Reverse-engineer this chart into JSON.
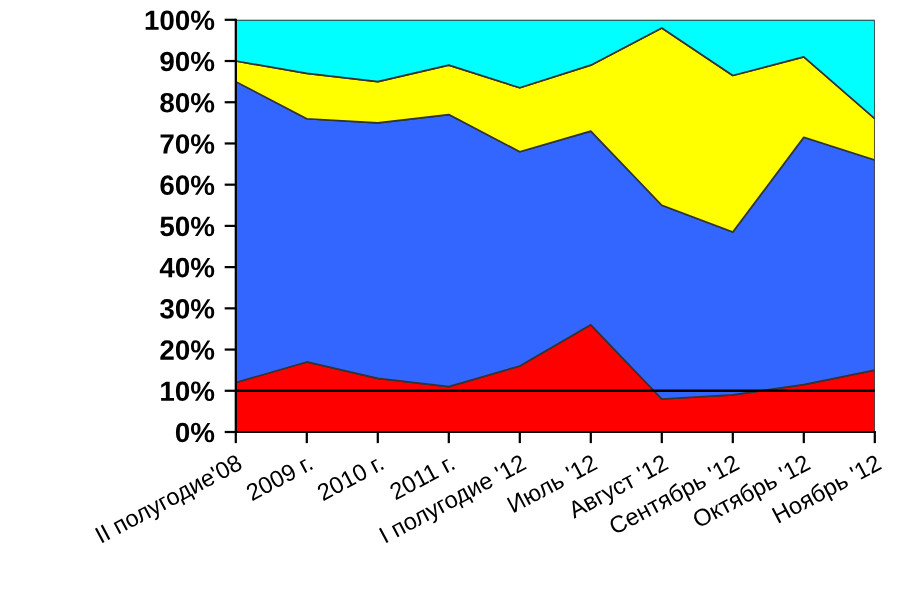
{
  "chart_data": {
    "type": "area",
    "stacked": true,
    "categories": [
      "II полугодие'08",
      "2009 г.",
      "2010 г.",
      "2011 г.",
      "I полугодие '12",
      "Июль '12",
      "Август '12",
      "Сентябрь '12",
      "Октябрь '12",
      "Ноябрь '12"
    ],
    "series": [
      {
        "color": "#ff0000",
        "values": [
          12,
          17,
          13,
          11,
          16,
          26,
          8,
          9,
          11.5,
          15
        ]
      },
      {
        "color": "#3366ff",
        "values": [
          73,
          59,
          62,
          66,
          52,
          47,
          47,
          39.5,
          60,
          51
        ]
      },
      {
        "color": "#ffff00",
        "values": [
          5,
          11,
          10,
          12,
          15.5,
          16,
          43,
          38,
          19.5,
          10
        ]
      },
      {
        "color": "#00ffff",
        "values": [
          10,
          13,
          15,
          11,
          16.5,
          11,
          2,
          13.5,
          9,
          24
        ]
      }
    ],
    "ylim": [
      0,
      100
    ],
    "yticks": [
      {
        "value": 0,
        "label": "0%"
      },
      {
        "value": 10,
        "label": "10%"
      },
      {
        "value": 20,
        "label": "20%"
      },
      {
        "value": 30,
        "label": "30%"
      },
      {
        "value": 40,
        "label": "40%"
      },
      {
        "value": 50,
        "label": "50%"
      },
      {
        "value": 60,
        "label": "60%"
      },
      {
        "value": 70,
        "label": "70%"
      },
      {
        "value": 80,
        "label": "80%"
      },
      {
        "value": 90,
        "label": "90%"
      },
      {
        "value": 100,
        "label": "100%"
      }
    ],
    "ref_lines": [
      {
        "axis": "y",
        "value": 10,
        "color": "#000000"
      }
    ],
    "grid": false,
    "legend": false
  }
}
